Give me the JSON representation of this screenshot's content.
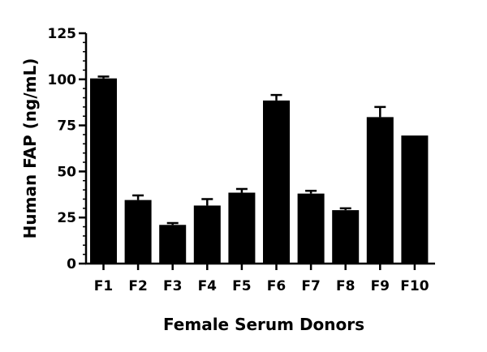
{
  "chart_data": {
    "type": "bar",
    "categories": [
      "F1",
      "F2",
      "F3",
      "F4",
      "F5",
      "F6",
      "F7",
      "F8",
      "F9",
      "F10"
    ],
    "values": [
      100.5,
      34.5,
      21,
      31.5,
      38.5,
      88.5,
      38,
      29,
      79.5,
      69.5
    ],
    "errors": [
      1,
      2.5,
      1,
      3.5,
      2,
      3,
      1.5,
      1,
      5.5,
      0
    ],
    "xlabel": "Female Serum Donors",
    "ylabel": "Human FAP (ng/mL)",
    "ylim": [
      0,
      125
    ],
    "yticks": [
      0,
      25,
      50,
      75,
      100,
      125
    ],
    "grid": false,
    "bar_color": "#000000"
  }
}
